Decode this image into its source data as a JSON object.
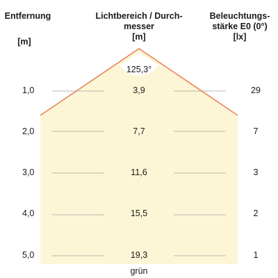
{
  "headers": {
    "distance": {
      "name": "Entfernung",
      "unit": "[m]"
    },
    "diameter": {
      "line1": "Lichtbereich / Durch-",
      "line2": "messer",
      "unit": "[m]"
    },
    "illuminance": {
      "line1": "Beleuchtungs-",
      "line2": "stärke E0 (0°)",
      "unit": "[lx]"
    }
  },
  "beam_angle": "125,3°",
  "rows": [
    {
      "distance": "1,0",
      "diameter": "3,9",
      "illuminance": "29"
    },
    {
      "distance": "2,0",
      "diameter": "7,7",
      "illuminance": "7"
    },
    {
      "distance": "3,0",
      "diameter": "11,6",
      "illuminance": "3"
    },
    {
      "distance": "4,0",
      "diameter": "15,5",
      "illuminance": "2"
    },
    {
      "distance": "5,0",
      "diameter": "19,3",
      "illuminance": "1"
    }
  ],
  "color_label": "grün",
  "colors": {
    "beam_fill": "#fdf6d6",
    "beam_edge": "#e8835a",
    "grid_line": "#a0a0a0"
  }
}
